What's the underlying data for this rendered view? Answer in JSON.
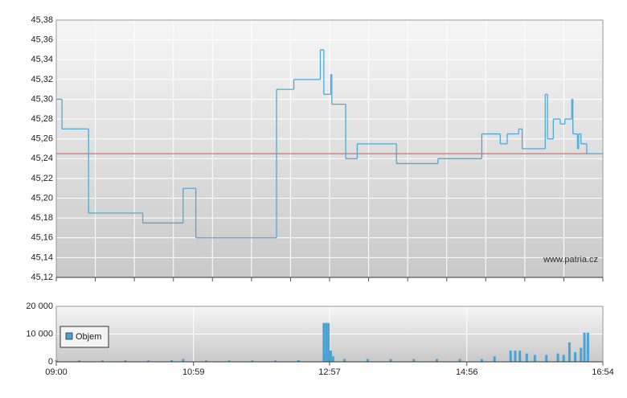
{
  "chart_data": [
    {
      "type": "step-line",
      "x": [
        "09:00",
        "09:05",
        "09:28",
        "10:15",
        "10:50",
        "11:01",
        "12:11",
        "12:26",
        "12:49",
        "12:52",
        "12:58",
        "12:59",
        "13:11",
        "13:21",
        "13:55",
        "14:31",
        "15:09",
        "15:25",
        "15:31",
        "15:41",
        "15:44",
        "16:04",
        "16:06",
        "16:11",
        "16:17",
        "16:21",
        "16:27",
        "16:28",
        "16:32",
        "16:33",
        "16:35",
        "16:40",
        "16:54"
      ],
      "values": [
        45.3,
        45.27,
        45.185,
        45.175,
        45.21,
        45.16,
        45.31,
        45.32,
        45.35,
        45.305,
        45.325,
        45.295,
        45.24,
        45.255,
        45.235,
        45.24,
        45.265,
        45.255,
        45.265,
        45.27,
        45.25,
        45.305,
        45.26,
        45.28,
        45.275,
        45.28,
        45.3,
        45.265,
        45.25,
        45.265,
        45.255,
        45.245,
        45.245
      ],
      "color": "#4fa9d6",
      "reference_line": 45.245,
      "reference_color": "#d9534f",
      "xlim": [
        "09:00",
        "16:54"
      ],
      "ylim": [
        45.12,
        45.38
      ],
      "yticks": [
        {
          "value": 45.12,
          "label": "45,12"
        },
        {
          "value": 45.14,
          "label": "45,14"
        },
        {
          "value": 45.16,
          "label": "45,16"
        },
        {
          "value": 45.18,
          "label": "45,18"
        },
        {
          "value": 45.2,
          "label": "45,20"
        },
        {
          "value": 45.22,
          "label": "45,22"
        },
        {
          "value": 45.24,
          "label": "45,24"
        },
        {
          "value": 45.26,
          "label": "45,26"
        },
        {
          "value": 45.28,
          "label": "45,28"
        },
        {
          "value": 45.3,
          "label": "45,30"
        },
        {
          "value": 45.32,
          "label": "45,32"
        },
        {
          "value": 45.34,
          "label": "45,34"
        },
        {
          "value": 45.36,
          "label": "45,36"
        },
        {
          "value": 45.38,
          "label": "45,38"
        }
      ],
      "grid": true,
      "watermark": "www.patria.cz"
    },
    {
      "type": "bar",
      "x": [
        "09:00",
        "09:20",
        "09:40",
        "10:00",
        "10:20",
        "10:40",
        "10:50",
        "11:10",
        "11:30",
        "11:50",
        "12:10",
        "12:30",
        "12:52",
        "12:54",
        "12:56",
        "12:58",
        "13:00",
        "13:10",
        "13:30",
        "13:50",
        "14:10",
        "14:30",
        "14:50",
        "15:09",
        "15:20",
        "15:34",
        "15:38",
        "15:42",
        "15:48",
        "15:55",
        "16:05",
        "16:15",
        "16:20",
        "16:25",
        "16:30",
        "16:35",
        "16:38",
        "16:41"
      ],
      "series": [
        {
          "name": "Objem",
          "color": "#4aa3d3",
          "values": [
            600,
            500,
            500,
            500,
            500,
            600,
            1000,
            500,
            500,
            500,
            500,
            600,
            14000,
            14000,
            14000,
            4000,
            2000,
            1000,
            1000,
            1000,
            1000,
            1000,
            1000,
            1000,
            2000,
            4000,
            4000,
            4000,
            3000,
            2500,
            2500,
            3000,
            2500,
            7000,
            3500,
            5000,
            10500,
            10500
          ]
        }
      ],
      "xlim": [
        "09:00",
        "16:54"
      ],
      "xticks": [
        "09:00",
        "10:59",
        "12:57",
        "14:56",
        "16:54"
      ],
      "ylim": [
        0,
        20000
      ],
      "yticks": [
        0,
        {
          "value": 10000,
          "label": "10 000"
        },
        {
          "value": 20000,
          "label": "20 000"
        }
      ],
      "grid": true,
      "legend": "upper-left"
    }
  ]
}
